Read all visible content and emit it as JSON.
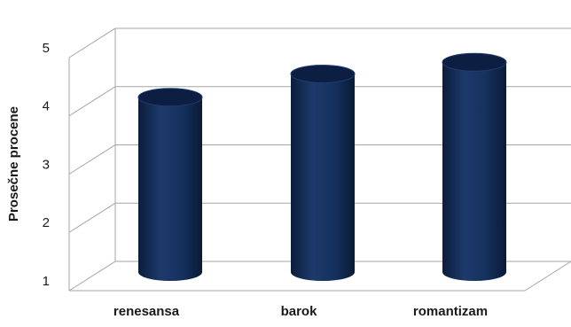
{
  "chart_data": {
    "type": "bar",
    "style": "3d-cylinder",
    "categories": [
      "renesansa",
      "barok",
      "romantizam"
    ],
    "values": [
      4.0,
      4.4,
      4.6
    ],
    "ylabel": "Prosečne procene",
    "xlabel": "",
    "ylim": [
      1,
      5
    ],
    "yticks": [
      1,
      2,
      3,
      4,
      5
    ],
    "grid": true,
    "bar_color": "#102850"
  }
}
